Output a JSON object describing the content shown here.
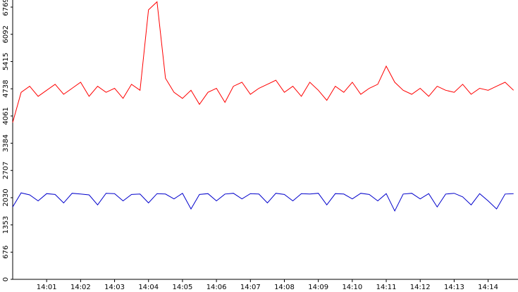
{
  "chart_data": {
    "type": "line",
    "x": [
      0,
      0.25,
      0.5,
      0.75,
      1,
      1.25,
      1.5,
      1.75,
      2,
      2.25,
      2.5,
      2.75,
      3,
      3.25,
      3.5,
      3.75,
      4,
      4.25,
      4.5,
      4.75,
      5,
      5.25,
      5.5,
      5.75,
      6,
      6.25,
      6.5,
      6.75,
      7,
      7.25,
      7.5,
      7.75,
      8,
      8.25,
      8.5,
      8.75,
      9,
      9.25,
      9.5,
      9.75,
      10,
      10.25,
      10.5,
      10.75,
      11,
      11.25,
      11.5,
      11.75,
      12,
      12.25,
      12.5,
      12.75,
      13,
      13.25,
      13.5,
      13.75,
      14,
      14.25,
      14.5,
      14.75
    ],
    "series": [
      {
        "color": "#ff0000",
        "values": [
          3900,
          4650,
          4800,
          4550,
          4700,
          4850,
          4600,
          4750,
          4900,
          4550,
          4800,
          4650,
          4750,
          4500,
          4850,
          4700,
          6700,
          6900,
          5000,
          4650,
          4500,
          4700,
          4350,
          4650,
          4750,
          4400,
          4800,
          4900,
          4600,
          4750,
          4850,
          4950,
          4650,
          4800,
          4550,
          4900,
          4700,
          4450,
          4800,
          4650,
          4900,
          4600,
          4750,
          4850,
          5300,
          4900,
          4700,
          4600,
          4750,
          4550,
          4800,
          4700,
          4650,
          4850,
          4600,
          4750,
          4700,
          4800,
          4900,
          4700
        ]
      },
      {
        "color": "#0000cc",
        "values": [
          1800,
          2150,
          2100,
          1950,
          2130,
          2110,
          1900,
          2140,
          2120,
          2100,
          1850,
          2140,
          2130,
          1950,
          2110,
          2120,
          1900,
          2130,
          2120,
          2000,
          2140,
          1750,
          2110,
          2130,
          1950,
          2120,
          2140,
          2000,
          2130,
          2120,
          1900,
          2140,
          2110,
          1950,
          2130,
          2120,
          2140,
          1850,
          2130,
          2120,
          2000,
          2140,
          2110,
          1950,
          2130,
          1700,
          2120,
          2140,
          2000,
          2130,
          1800,
          2120,
          2140,
          2050,
          1850,
          2130,
          1950,
          1750,
          2120,
          2130
        ]
      }
    ],
    "xlim": [
      0,
      14.88
    ],
    "xticks": [
      {
        "value": 1,
        "label": "14:01"
      },
      {
        "value": 2,
        "label": "14:02"
      },
      {
        "value": 3,
        "label": "14:03"
      },
      {
        "value": 4,
        "label": "14:04"
      },
      {
        "value": 5,
        "label": "14:05"
      },
      {
        "value": 6,
        "label": "14:06"
      },
      {
        "value": 7,
        "label": "14:07"
      },
      {
        "value": 8,
        "label": "14:08"
      },
      {
        "value": 9,
        "label": "14:09"
      },
      {
        "value": 10,
        "label": "14:10"
      },
      {
        "value": 11,
        "label": "14:11"
      },
      {
        "value": 12,
        "label": "14:12"
      },
      {
        "value": 13,
        "label": "14:13"
      },
      {
        "value": 14,
        "label": "14:14"
      }
    ],
    "ylim": [
      0,
      6945
    ],
    "yticks": [
      0,
      676,
      1353,
      2030,
      2707,
      3384,
      4061,
      4738,
      5415,
      6092,
      6769
    ]
  }
}
